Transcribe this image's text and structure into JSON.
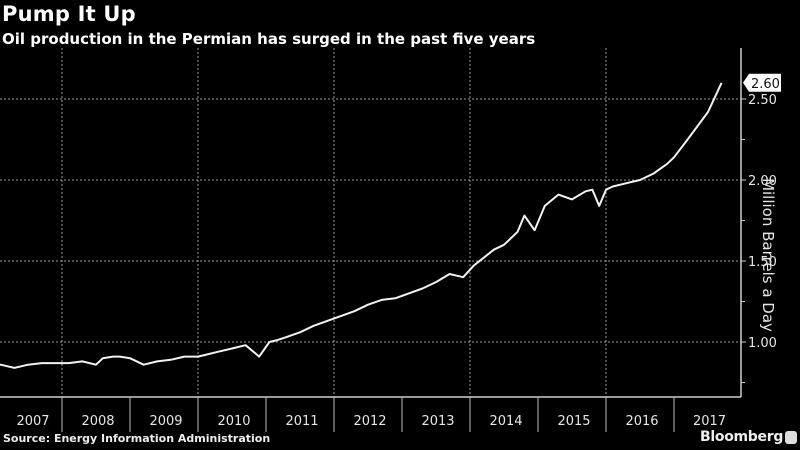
{
  "header": {
    "title": "Pump It Up",
    "subtitle": "Oil production in the Permian has surged in the past five years"
  },
  "footer": {
    "source": "Source: Energy Information Administration",
    "brand": "Bloomberg"
  },
  "axis": {
    "ylabel": "Million Barrels a Day",
    "last_value_label": "2.60"
  },
  "chart_data": {
    "type": "line",
    "title": "Pump It Up",
    "subtitle": "Oil production in the Permian has surged in the past five years",
    "xlabel": "",
    "ylabel": "Million Barrels a Day",
    "x_tick_labels": [
      "2007",
      "2008",
      "2009",
      "2010",
      "2011",
      "2012",
      "2013",
      "2014",
      "2015",
      "2016",
      "2017"
    ],
    "y_ticks": [
      1.0,
      1.5,
      2.0,
      2.5
    ],
    "ylim": [
      0.75,
      2.75
    ],
    "grid": true,
    "last_value_annotation": 2.6,
    "series": [
      {
        "name": "Permian oil production",
        "x": [
          2007.0,
          2007.1,
          2007.2,
          2007.3,
          2007.4,
          2007.5,
          2007.7,
          2007.9,
          2008.1,
          2008.3,
          2008.5,
          2008.6,
          2008.75,
          2008.85,
          2009.0,
          2009.2,
          2009.4,
          2009.6,
          2009.8,
          2010.0,
          2010.1,
          2010.3,
          2010.5,
          2010.7,
          2010.9,
          2011.05,
          2011.15,
          2011.3,
          2011.5,
          2011.7,
          2011.9,
          2012.1,
          2012.3,
          2012.5,
          2012.7,
          2012.9,
          2013.1,
          2013.3,
          2013.5,
          2013.7,
          2013.9,
          2014.05,
          2014.2,
          2014.35,
          2014.5,
          2014.7,
          2014.8,
          2014.95,
          2015.1,
          2015.3,
          2015.5,
          2015.7,
          2015.8,
          2015.9,
          2016.0,
          2016.1,
          2016.3,
          2016.5,
          2016.7,
          2016.9,
          2017.0,
          2017.2,
          2017.5,
          2017.7
        ],
        "values": [
          0.85,
          0.86,
          0.85,
          0.84,
          0.85,
          0.86,
          0.87,
          0.87,
          0.87,
          0.88,
          0.86,
          0.9,
          0.91,
          0.91,
          0.9,
          0.86,
          0.88,
          0.89,
          0.91,
          0.91,
          0.92,
          0.94,
          0.96,
          0.98,
          0.91,
          1.0,
          1.01,
          1.03,
          1.06,
          1.1,
          1.13,
          1.16,
          1.19,
          1.23,
          1.26,
          1.27,
          1.3,
          1.33,
          1.37,
          1.42,
          1.4,
          1.47,
          1.52,
          1.57,
          1.6,
          1.68,
          1.78,
          1.69,
          1.84,
          1.91,
          1.88,
          1.93,
          1.94,
          1.84,
          1.94,
          1.96,
          1.98,
          2.0,
          2.04,
          2.1,
          2.14,
          2.25,
          2.42,
          2.6
        ]
      }
    ]
  }
}
